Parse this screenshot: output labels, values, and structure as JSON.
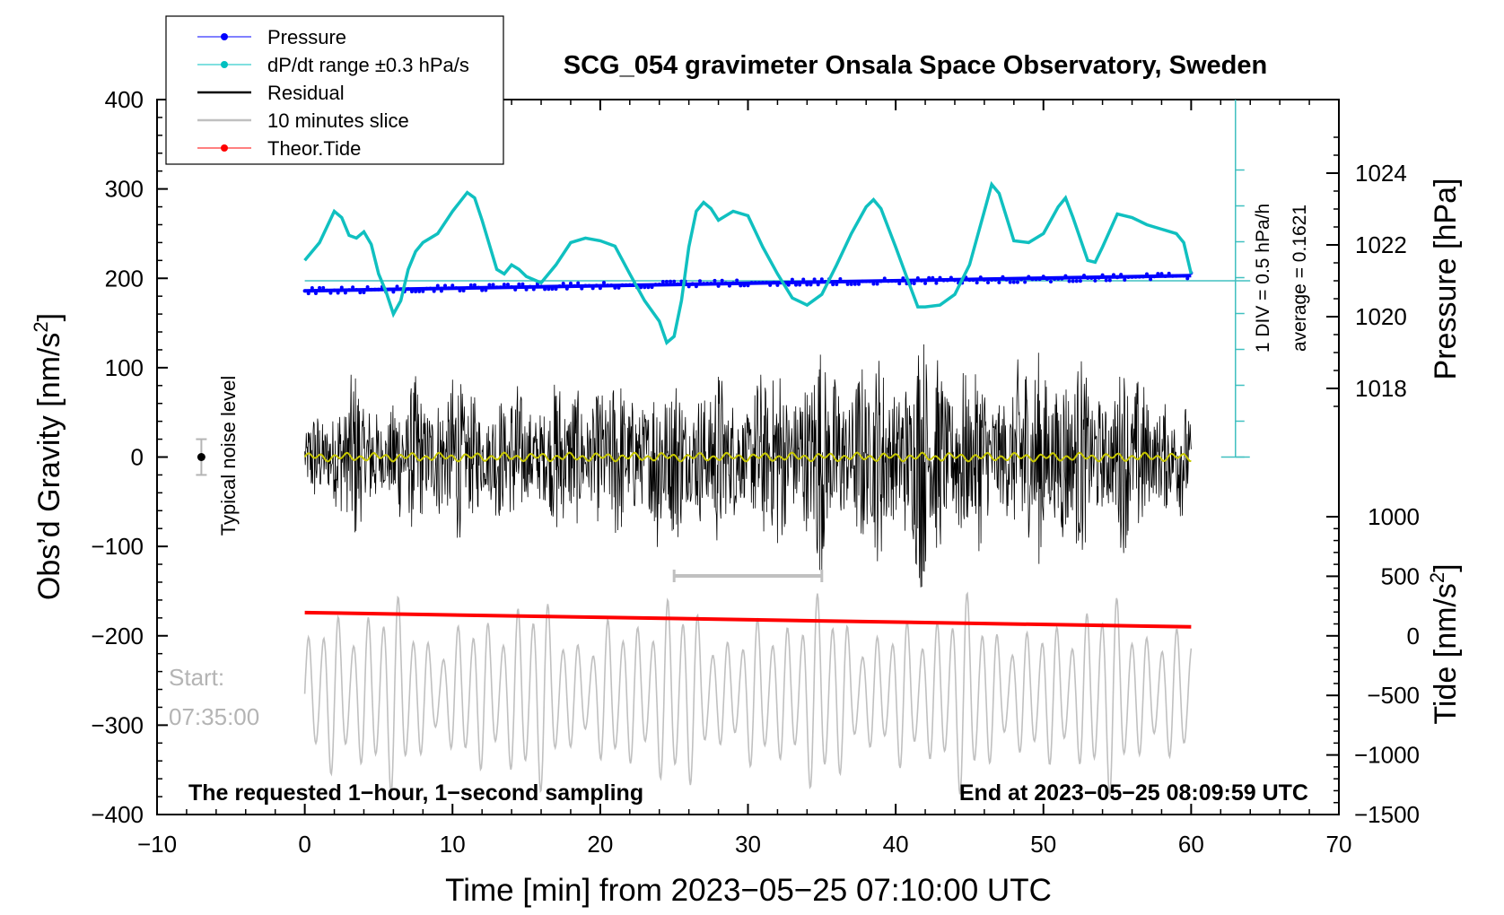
{
  "chart_data": {
    "type": "line",
    "title": "SCG_054 gravimeter Onsala Space Observatory, Sweden",
    "xlabel": "Time [min] from 2023−05−25 07:10:00 UTC",
    "ylabel": "Obs’d Gravity [nm/s",
    "ylabel_sup": "2",
    "ylabel_end": "]",
    "xlim": [
      -10,
      70
    ],
    "ylim": [
      -400,
      400
    ],
    "x_ticks": [
      -10,
      0,
      10,
      20,
      30,
      40,
      50,
      60,
      70
    ],
    "x_tick_labels": [
      "−10",
      "0",
      "10",
      "20",
      "30",
      "40",
      "50",
      "60",
      "70"
    ],
    "y_ticks": [
      -400,
      -300,
      -200,
      -100,
      0,
      100,
      200,
      300,
      400
    ],
    "y_tick_labels": [
      "−400",
      "−300",
      "−200",
      "−100",
      "0",
      "100",
      "200",
      "300",
      "400"
    ],
    "pressure_axis": {
      "label": "Pressure [hPa]",
      "ticks": [
        1018,
        1020,
        1022,
        1024
      ],
      "tick_labels": [
        "1018",
        "1020",
        "1022",
        "1024"
      ],
      "average_hpa": 1021
    },
    "tide_axis": {
      "label": "Tide [nm/s",
      "label_sup": "2",
      "label_end": "]",
      "ticks": [
        -1500,
        -1000,
        -500,
        0,
        500,
        1000
      ],
      "tick_labels": [
        "−1500",
        "−1000",
        "−500",
        "0",
        "500",
        "1000"
      ]
    },
    "legend": {
      "position": "top-left",
      "entries": [
        {
          "label": "Pressure",
          "color": "#0000ff",
          "marker": true
        },
        {
          "label": "dP/dt range ±0.3 hPa/s",
          "color": "#00c0c0",
          "marker": true
        },
        {
          "label": "Residual",
          "color": "#000000",
          "marker": false
        },
        {
          "label": "10 minutes slice",
          "color": "#c0c0c0",
          "marker": false
        },
        {
          "label": "Theor.Tide",
          "color": "#ff0000",
          "marker": true
        }
      ]
    },
    "series": [
      {
        "name": "dP/dt",
        "color": "#00c0c0",
        "x": [
          0,
          1,
          2,
          2.5,
          3,
          3.5,
          4,
          4.5,
          5,
          5.5,
          6,
          6.5,
          7,
          7.5,
          8,
          9,
          10,
          11,
          11.5,
          12,
          13,
          13.5,
          14,
          14.5,
          15,
          16,
          17,
          18,
          19,
          20,
          21,
          22,
          23,
          24,
          24.5,
          25,
          25.5,
          26,
          26.5,
          27,
          27.5,
          28,
          29,
          30,
          31,
          32,
          33,
          34,
          35,
          36,
          37,
          38,
          38.5,
          39,
          40,
          41,
          41.5,
          42,
          43,
          44,
          45,
          46,
          46.5,
          47,
          48,
          49,
          50,
          51,
          51.5,
          52,
          53,
          53.5,
          54,
          55,
          56,
          57,
          58,
          59,
          59.5,
          60
        ],
        "values": [
          220,
          240,
          275,
          268,
          248,
          245,
          252,
          238,
          205,
          185,
          160,
          175,
          210,
          230,
          240,
          250,
          275,
          296,
          290,
          265,
          210,
          205,
          215,
          210,
          202,
          195,
          215,
          240,
          245,
          242,
          236,
          205,
          175,
          152,
          128,
          135,
          175,
          235,
          275,
          285,
          278,
          265,
          275,
          270,
          235,
          205,
          178,
          170,
          182,
          215,
          250,
          280,
          288,
          278,
          235,
          190,
          168,
          168,
          170,
          182,
          215,
          275,
          305,
          295,
          242,
          240,
          250,
          280,
          290,
          268,
          220,
          218,
          235,
          272,
          268,
          260,
          255,
          250,
          240,
          205
        ]
      },
      {
        "name": "Pressure",
        "color": "#0000ff",
        "x": [
          0,
          10,
          20,
          30,
          40,
          50,
          60
        ],
        "values": [
          186,
          189,
          192,
          195,
          197,
          199,
          203
        ]
      },
      {
        "name": "Theor.Tide",
        "color": "#ff0000",
        "x": [
          0,
          60
        ],
        "values": [
          -174,
          -190
        ]
      }
    ],
    "annotations": {
      "noise_label": "Typical noise level",
      "scale_label": "1 DIV = 0.5 hPa/h",
      "average_label": "average = 0.1621",
      "start_label": "Start:",
      "start_time": "07:35:00",
      "bottom_left": "The requested 1−hour, 1−second sampling",
      "bottom_right": "End at 2023−05−25 08:09:59 UTC"
    },
    "slice_range": [
      25,
      35
    ],
    "noise_bar": {
      "x": -7,
      "center": 0,
      "half": 20
    }
  }
}
